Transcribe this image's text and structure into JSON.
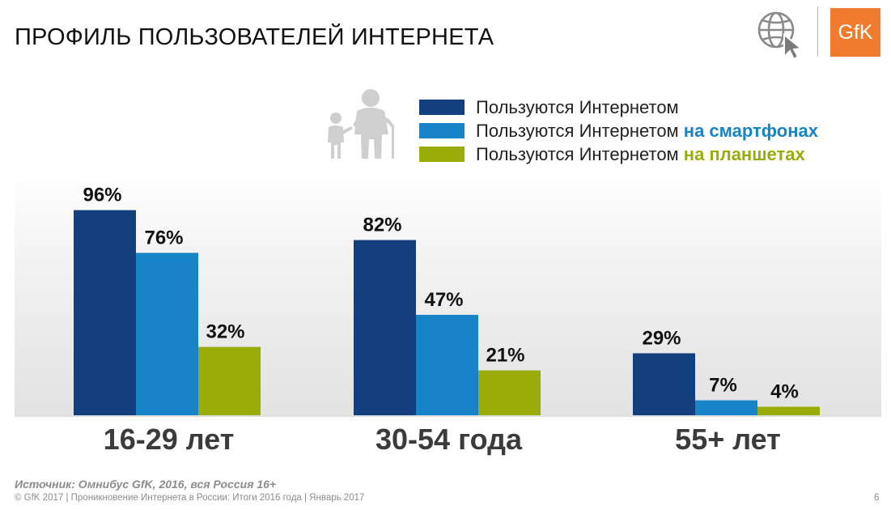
{
  "header": {
    "title": "ПРОФИЛЬ ПОЛЬЗОВАТЕЛЕЙ ИНТЕРНЕТА",
    "logo_text": "GfK"
  },
  "legend": [
    {
      "base": "Пользуются Интернетом",
      "highlight": "",
      "color": "#133f7e",
      "highlight_color": "#133f7e"
    },
    {
      "base": "Пользуются Интернетом ",
      "highlight": "на смартфонах",
      "color": "#1884c8",
      "highlight_color": "#1884c8"
    },
    {
      "base": "Пользуются Интернетом ",
      "highlight": "на планшетах",
      "color": "#99ac0a",
      "highlight_color": "#99ac0a"
    }
  ],
  "chart_data": {
    "type": "bar",
    "categories": [
      "16-29 лет",
      "30-54 года",
      "55+ лет"
    ],
    "series": [
      {
        "name": "Пользуются Интернетом",
        "values": [
          96,
          82,
          29
        ],
        "labels": [
          "96%",
          "82%",
          "29%"
        ],
        "color": "#133f7e"
      },
      {
        "name": "Пользуются Интернетом на смартфонах",
        "values": [
          76,
          47,
          7
        ],
        "labels": [
          "76%",
          "47%",
          "7%"
        ],
        "color": "#1884c8"
      },
      {
        "name": "Пользуются Интернетом на планшетах",
        "values": [
          32,
          21,
          4
        ],
        "labels": [
          "32%",
          "21%",
          "4%"
        ],
        "color": "#99ac0a"
      }
    ],
    "ylim": [
      0,
      100
    ],
    "grid": false,
    "legend_position": "top-right"
  },
  "footer": {
    "source": "Источник: Омнибус GfK, 2016, вся Россия 16+",
    "copyright": "© GfK 2017 | Проникновение Интернета в России: Итоги 2016 года | Январь 2017",
    "page": "6"
  }
}
